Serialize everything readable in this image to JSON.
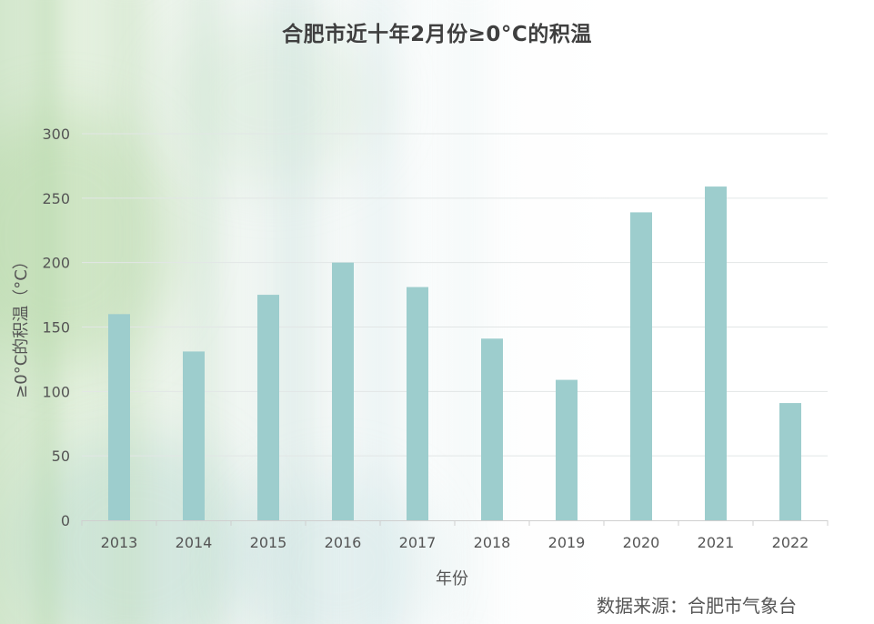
{
  "chart_data": {
    "type": "bar",
    "title": "合肥市近十年2月份≥0°C的积温",
    "xlabel": "年份",
    "ylabel": "≥0°C的积温（°C）",
    "categories": [
      "2013",
      "2014",
      "2015",
      "2016",
      "2017",
      "2018",
      "2019",
      "2020",
      "2021",
      "2022"
    ],
    "values": [
      160,
      131,
      175,
      200,
      181,
      141,
      109,
      239,
      259,
      91
    ],
    "ylim": [
      0,
      300
    ],
    "yticks": [
      0,
      50,
      100,
      150,
      200,
      250,
      300
    ],
    "grid": true,
    "bar_color": "#9dcdcd"
  },
  "source_note": "数据来源：合肥市气象台"
}
